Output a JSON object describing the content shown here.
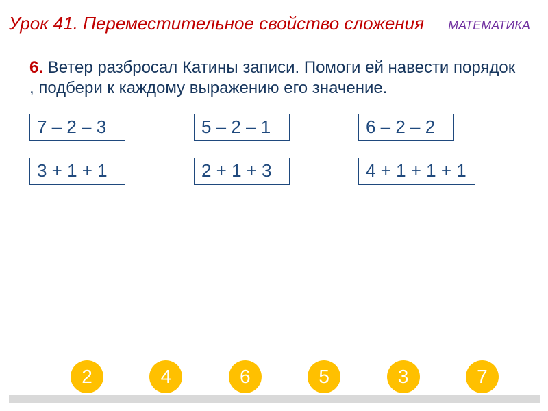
{
  "colors": {
    "title": "#c00000",
    "subject": "#7030a0",
    "taskNumber": "#c00000",
    "taskBody": "#17365d",
    "boxBorder": "#1f497d",
    "boxText": "#1f497d",
    "circleBg": "#ffc000",
    "circleText": "#ffffff",
    "footer": "#d9d9d9"
  },
  "header": {
    "title": "Урок 41. Переместительное свойство сложения",
    "subject": "МАТЕМАТИКА"
  },
  "task": {
    "number": "6.",
    "text": " Ветер разбросал  Катины записи. Помоги ей навести порядок , подбери к каждому выражению его значение."
  },
  "expressions": {
    "row1": [
      {
        "text": "7 – 2 – 3"
      },
      {
        "text": "5 – 2 – 1"
      },
      {
        "text": "6 – 2 – 2"
      }
    ],
    "row2": [
      {
        "text": "3 + 1 + 1"
      },
      {
        "text": "2 + 1 + 3"
      },
      {
        "text": "4 + 1 + 1 + 1"
      }
    ]
  },
  "answers": [
    "2",
    "4",
    "6",
    "5",
    "3",
    "7"
  ]
}
